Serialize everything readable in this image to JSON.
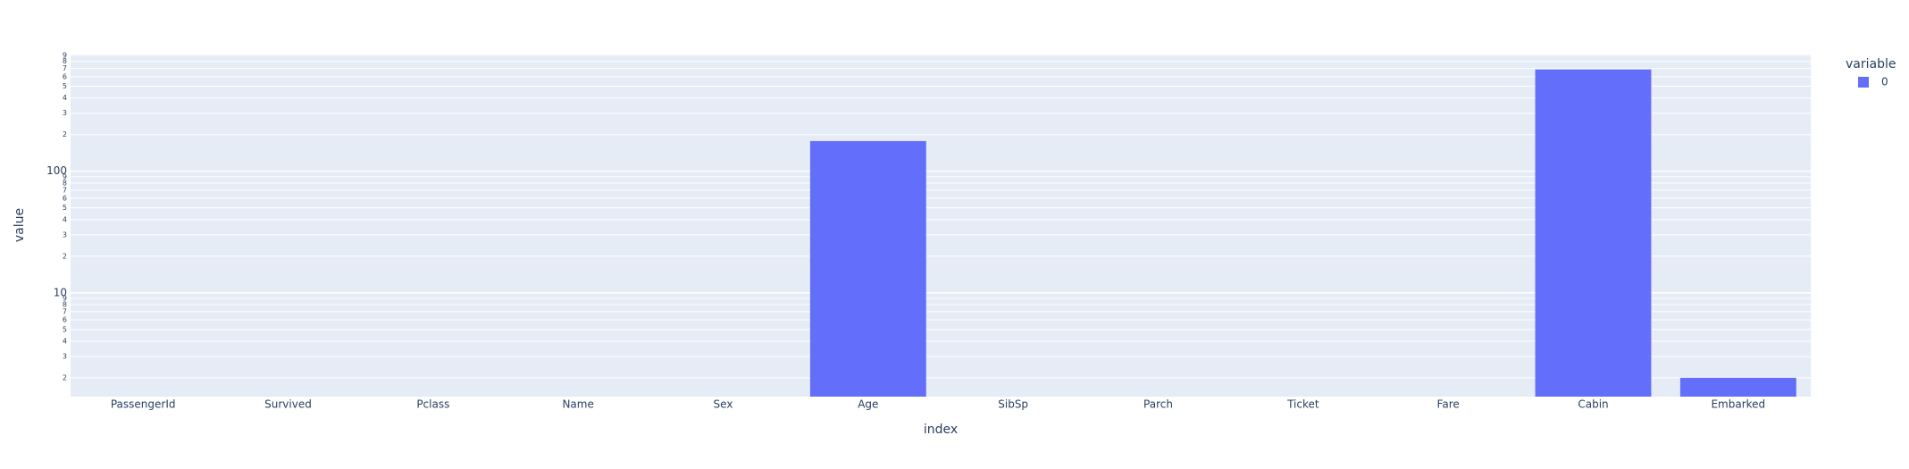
{
  "chart_data": {
    "type": "bar",
    "x_label": "index",
    "y_label": "value",
    "categories": [
      "PassengerId",
      "Survived",
      "Pclass",
      "Name",
      "Sex",
      "Age",
      "SibSp",
      "Parch",
      "Ticket",
      "Fare",
      "Cabin",
      "Embarked"
    ],
    "series": [
      {
        "name": "0",
        "color": "#636efa",
        "values": [
          0,
          0,
          0,
          0,
          0,
          177,
          0,
          0,
          0,
          0,
          687,
          2
        ]
      }
    ],
    "legend_title": "variable",
    "log_y": true,
    "ylim": [
      1.4,
      912
    ],
    "yticks": [
      2,
      3,
      4,
      5,
      6,
      7,
      8,
      9,
      10,
      {
        "value": 20,
        "label": "2"
      },
      {
        "value": 30,
        "label": "3"
      },
      {
        "value": 40,
        "label": "4"
      },
      {
        "value": 50,
        "label": "5"
      },
      {
        "value": 60,
        "label": "6"
      },
      {
        "value": 70,
        "label": "7"
      },
      {
        "value": 80,
        "label": "8"
      },
      {
        "value": 90,
        "label": "9"
      },
      100,
      {
        "value": 200,
        "label": "2"
      },
      {
        "value": 300,
        "label": "3"
      },
      {
        "value": 400,
        "label": "4"
      },
      {
        "value": 500,
        "label": "5"
      },
      {
        "value": 600,
        "label": "6"
      },
      {
        "value": 700,
        "label": "7"
      },
      {
        "value": 800,
        "label": "8"
      },
      {
        "value": 900,
        "label": "9"
      }
    ],
    "grid": true,
    "legend_position": "right"
  }
}
